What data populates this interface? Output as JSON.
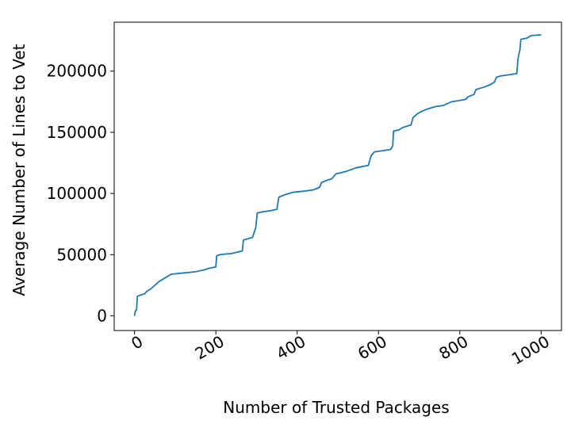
{
  "chart_data": {
    "type": "line",
    "xlabel": "Number of Trusted Packages",
    "ylabel": "Average Number of Lines to Vet",
    "xlim": [
      -50,
      1050
    ],
    "ylim": [
      -12000,
      240000
    ],
    "x_ticks": [
      0,
      200,
      400,
      600,
      800,
      1000
    ],
    "y_ticks": [
      0,
      50000,
      100000,
      150000,
      200000
    ],
    "grid": false,
    "legend": "none",
    "series": [
      {
        "color": "#1f77b4",
        "points": [
          [
            0,
            0
          ],
          [
            2,
            4000
          ],
          [
            5,
            5000
          ],
          [
            7,
            16000
          ],
          [
            15,
            17000
          ],
          [
            25,
            18000
          ],
          [
            30,
            20000
          ],
          [
            40,
            22000
          ],
          [
            50,
            25000
          ],
          [
            60,
            28000
          ],
          [
            70,
            30000
          ],
          [
            80,
            32000
          ],
          [
            90,
            34000
          ],
          [
            120,
            35000
          ],
          [
            150,
            36000
          ],
          [
            170,
            37500
          ],
          [
            185,
            39000
          ],
          [
            200,
            40000
          ],
          [
            202,
            49000
          ],
          [
            210,
            50000
          ],
          [
            240,
            51000
          ],
          [
            265,
            53000
          ],
          [
            268,
            62000
          ],
          [
            290,
            64000
          ],
          [
            298,
            72000
          ],
          [
            302,
            84000
          ],
          [
            315,
            85000
          ],
          [
            335,
            86000
          ],
          [
            350,
            87000
          ],
          [
            355,
            97000
          ],
          [
            370,
            99000
          ],
          [
            390,
            101000
          ],
          [
            420,
            102000
          ],
          [
            440,
            103000
          ],
          [
            455,
            105000
          ],
          [
            460,
            109000
          ],
          [
            475,
            111000
          ],
          [
            485,
            112000
          ],
          [
            495,
            116000
          ],
          [
            520,
            118000
          ],
          [
            545,
            121000
          ],
          [
            575,
            123000
          ],
          [
            582,
            131000
          ],
          [
            590,
            134000
          ],
          [
            610,
            135000
          ],
          [
            630,
            136000
          ],
          [
            635,
            139000
          ],
          [
            637,
            151000
          ],
          [
            650,
            152000
          ],
          [
            660,
            154000
          ],
          [
            680,
            156000
          ],
          [
            685,
            162000
          ],
          [
            695,
            165000
          ],
          [
            705,
            167000
          ],
          [
            720,
            169000
          ],
          [
            740,
            171000
          ],
          [
            760,
            172000
          ],
          [
            780,
            175000
          ],
          [
            800,
            176000
          ],
          [
            815,
            177000
          ],
          [
            820,
            179000
          ],
          [
            835,
            181000
          ],
          [
            840,
            185000
          ],
          [
            860,
            187000
          ],
          [
            875,
            189000
          ],
          [
            885,
            191000
          ],
          [
            890,
            195000
          ],
          [
            900,
            196000
          ],
          [
            920,
            197000
          ],
          [
            940,
            198000
          ],
          [
            943,
            210000
          ],
          [
            948,
            218000
          ],
          [
            950,
            226000
          ],
          [
            965,
            227000
          ],
          [
            975,
            229000
          ],
          [
            990,
            229500
          ],
          [
            1000,
            229500
          ]
        ]
      }
    ]
  }
}
